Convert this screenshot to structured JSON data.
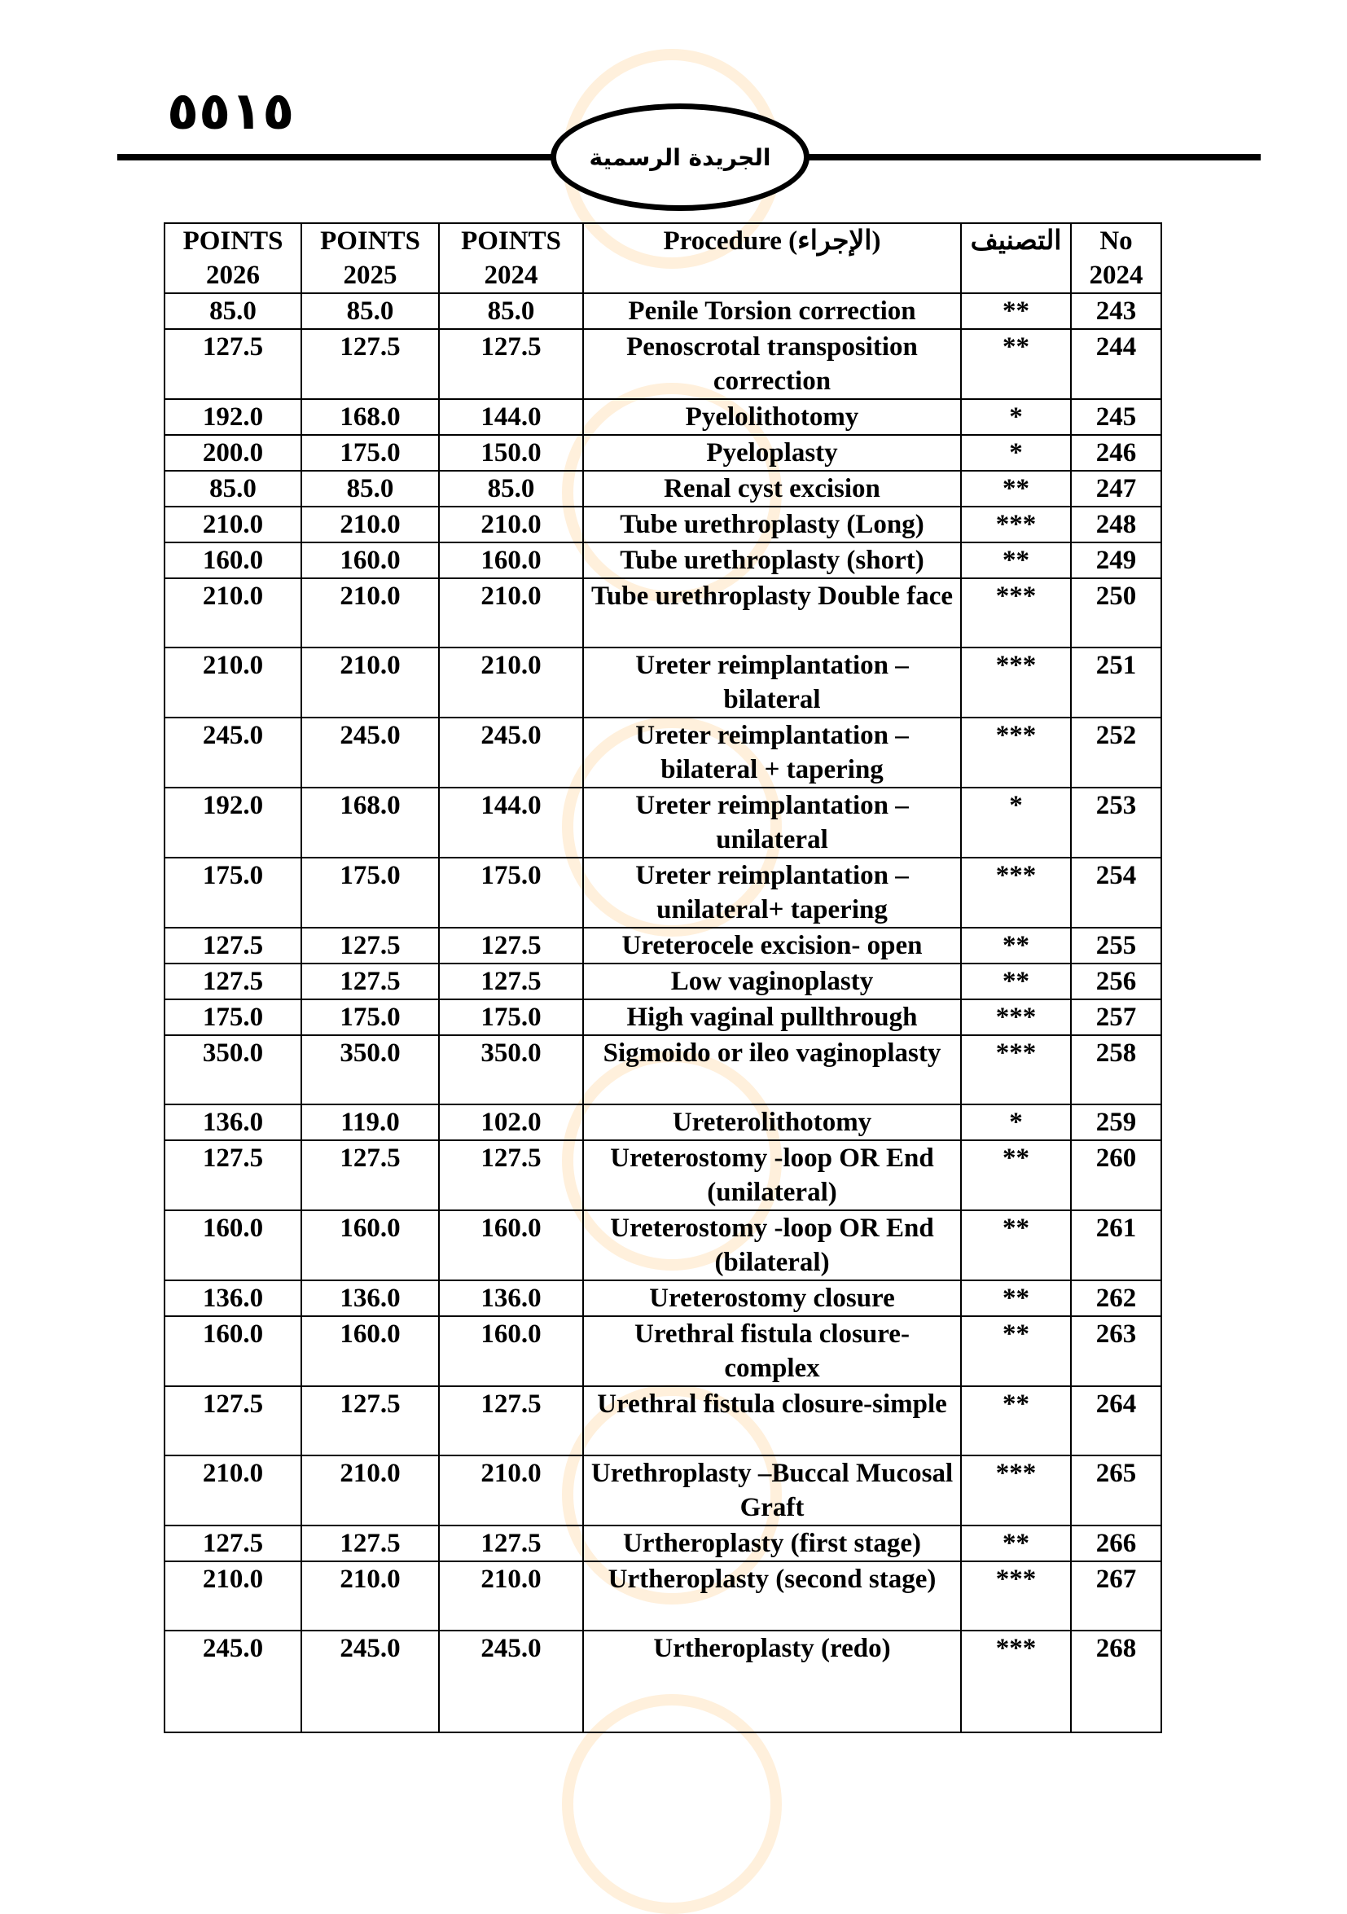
{
  "header": {
    "page_number": "٥٥١٥",
    "publication": "الجريدة الرسمية"
  },
  "table": {
    "columns": [
      "POINTS 2026",
      "POINTS 2025",
      "POINTS 2024",
      "Procedure (الإجراء)",
      "التصنيف",
      "No 2024"
    ],
    "rows": [
      {
        "p2026": "85.0",
        "p2025": "85.0",
        "p2024": "85.0",
        "procedure": "Penile Torsion correction",
        "class": "**",
        "no": "243"
      },
      {
        "p2026": "127.5",
        "p2025": "127.5",
        "p2024": "127.5",
        "procedure": "Penoscrotal transposition correction",
        "class": "**",
        "no": "244"
      },
      {
        "p2026": "192.0",
        "p2025": "168.0",
        "p2024": "144.0",
        "procedure": "Pyelolithotomy",
        "class": "*",
        "no": "245"
      },
      {
        "p2026": "200.0",
        "p2025": "175.0",
        "p2024": "150.0",
        "procedure": "Pyeloplasty",
        "class": "*",
        "no": "246"
      },
      {
        "p2026": "85.0",
        "p2025": "85.0",
        "p2024": "85.0",
        "procedure": "Renal cyst excision",
        "class": "**",
        "no": "247"
      },
      {
        "p2026": "210.0",
        "p2025": "210.0",
        "p2024": "210.0",
        "procedure": "Tube urethroplasty (Long)",
        "class": "***",
        "no": "248"
      },
      {
        "p2026": "160.0",
        "p2025": "160.0",
        "p2024": "160.0",
        "procedure": "Tube urethroplasty (short)",
        "class": "**",
        "no": "249"
      },
      {
        "p2026": "210.0",
        "p2025": "210.0",
        "p2024": "210.0",
        "procedure": "Tube urethroplasty Double face",
        "class": "***",
        "no": "250"
      },
      {
        "p2026": "210.0",
        "p2025": "210.0",
        "p2024": "210.0",
        "procedure": "Ureter reimplantation – bilateral",
        "class": "***",
        "no": "251"
      },
      {
        "p2026": "245.0",
        "p2025": "245.0",
        "p2024": "245.0",
        "procedure": "Ureter reimplantation – bilateral + tapering",
        "class": "***",
        "no": "252"
      },
      {
        "p2026": "192.0",
        "p2025": "168.0",
        "p2024": "144.0",
        "procedure": "Ureter reimplantation – unilateral",
        "class": "*",
        "no": "253"
      },
      {
        "p2026": "175.0",
        "p2025": "175.0",
        "p2024": "175.0",
        "procedure": "Ureter reimplantation – unilateral+ tapering",
        "class": "***",
        "no": "254"
      },
      {
        "p2026": "127.5",
        "p2025": "127.5",
        "p2024": "127.5",
        "procedure": "Ureterocele excision- open",
        "class": "**",
        "no": "255"
      },
      {
        "p2026": "127.5",
        "p2025": "127.5",
        "p2024": "127.5",
        "procedure": "Low vaginoplasty",
        "class": "**",
        "no": "256"
      },
      {
        "p2026": "175.0",
        "p2025": "175.0",
        "p2024": "175.0",
        "procedure": "High vaginal pullthrough",
        "class": "***",
        "no": "257"
      },
      {
        "p2026": "350.0",
        "p2025": "350.0",
        "p2024": "350.0",
        "procedure": "Sigmoido or ileo vaginoplasty",
        "class": "***",
        "no": "258"
      },
      {
        "p2026": "136.0",
        "p2025": "119.0",
        "p2024": "102.0",
        "procedure": "Ureterolithotomy",
        "class": "*",
        "no": "259"
      },
      {
        "p2026": "127.5",
        "p2025": "127.5",
        "p2024": "127.5",
        "procedure": "Ureterostomy -loop OR End (unilateral)",
        "class": "**",
        "no": "260"
      },
      {
        "p2026": "160.0",
        "p2025": "160.0",
        "p2024": "160.0",
        "procedure": "Ureterostomy -loop OR End (bilateral)",
        "class": "**",
        "no": "261"
      },
      {
        "p2026": "136.0",
        "p2025": "136.0",
        "p2024": "136.0",
        "procedure": "Ureterostomy closure",
        "class": "**",
        "no": "262"
      },
      {
        "p2026": "160.0",
        "p2025": "160.0",
        "p2024": "160.0",
        "procedure": "Urethral fistula closure-complex",
        "class": "**",
        "no": "263"
      },
      {
        "p2026": "127.5",
        "p2025": "127.5",
        "p2024": "127.5",
        "procedure": "Urethral fistula closure-simple",
        "class": "**",
        "no": "264"
      },
      {
        "p2026": "210.0",
        "p2025": "210.0",
        "p2024": "210.0",
        "procedure": "Urethroplasty –Buccal Mucosal Graft",
        "class": "***",
        "no": "265"
      },
      {
        "p2026": "127.5",
        "p2025": "127.5",
        "p2024": "127.5",
        "procedure": "Urtheroplasty (first stage)",
        "class": "**",
        "no": "266"
      },
      {
        "p2026": "210.0",
        "p2025": "210.0",
        "p2024": "210.0",
        "procedure": "Urtheroplasty (second stage)",
        "class": "***",
        "no": "267"
      },
      {
        "p2026": "245.0",
        "p2025": "245.0",
        "p2024": "245.0",
        "procedure": "Urtheroplasty (redo)",
        "class": "***",
        "no": "268"
      }
    ]
  }
}
